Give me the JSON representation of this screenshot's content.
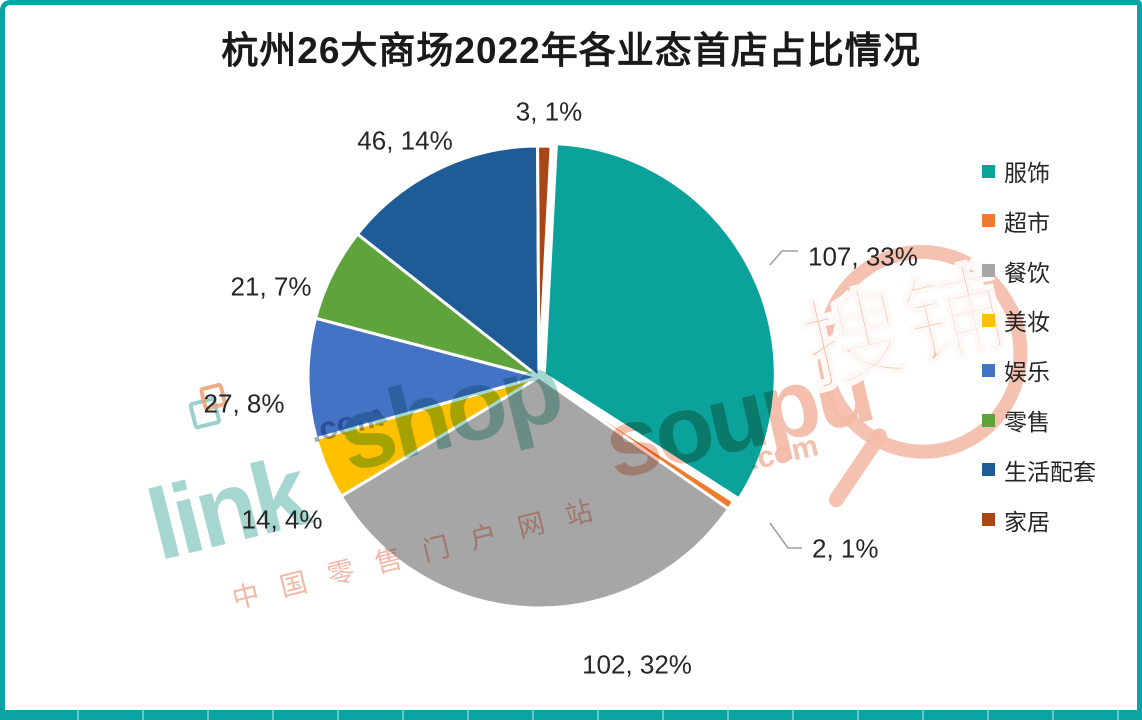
{
  "page": {
    "frame_color": "#0AA3A8",
    "bottom_bar_color": "#0AA5A3"
  },
  "chart_data": {
    "type": "pie",
    "title": "杭州26大商场2022年各业态首店占比情况",
    "categories": [
      "服饰",
      "超市",
      "餐饮",
      "美妆",
      "娱乐",
      "零售",
      "生活配套",
      "家居"
    ],
    "values": [
      107,
      2,
      102,
      14,
      27,
      21,
      46,
      3
    ],
    "percent_labels": [
      "33%",
      "1%",
      "32%",
      "4%",
      "8%",
      "7%",
      "14%",
      "1%"
    ],
    "labels": [
      "107, 33%",
      "2, 1%",
      "102, 32%",
      "14, 4%",
      "27, 8%",
      "21, 7%",
      "46, 14%",
      "3, 1%"
    ],
    "colors": [
      "#0BA29C",
      "#EE7C2E",
      "#A6A6A6",
      "#FFC000",
      "#4472C4",
      "#5FA33C",
      "#1F5C97",
      "#A84715"
    ],
    "legend_position": "right",
    "start_angle_deg": 3,
    "direction": "clockwise",
    "slice_border_color": "#FFFFFF",
    "leader_line_color": "#A0A0A0"
  },
  "watermarks": {
    "linkshop": {
      "text_part1": "link",
      "text_part2": "shop",
      "text_dotcom": ".com",
      "text_sub": "中国零售门户网站"
    },
    "soupu": {
      "text_main": "soupu",
      "text_dotcom": ".com",
      "text_cn": "搜铺"
    }
  }
}
